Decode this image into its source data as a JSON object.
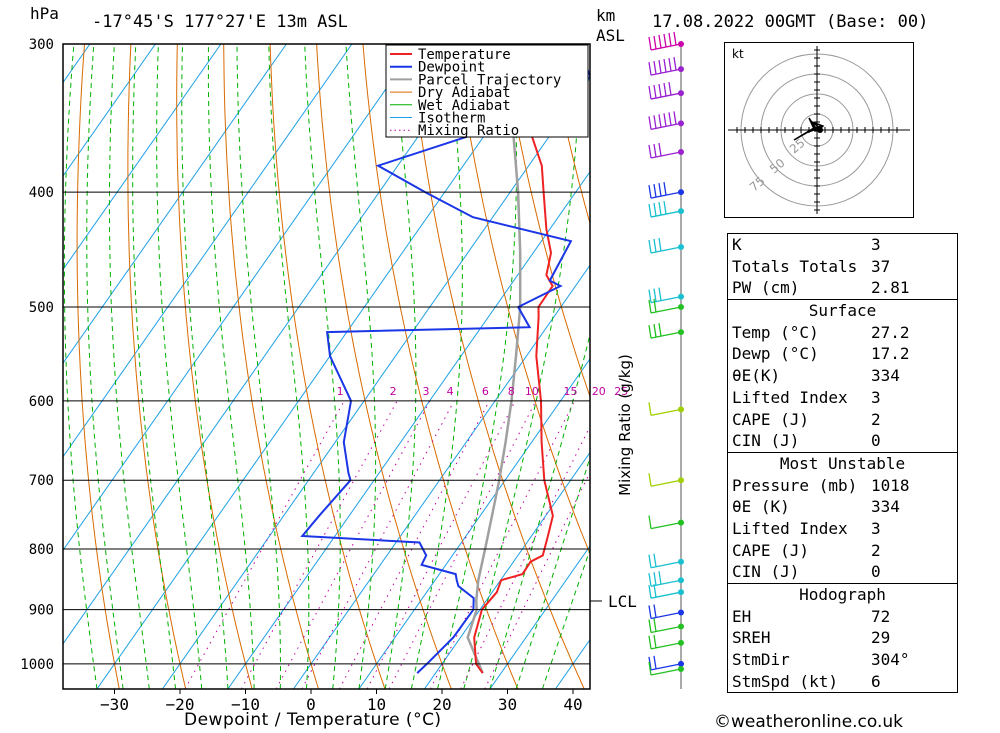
{
  "header": {
    "pressure_unit": "hPa",
    "location": "-17°45'S  177°27'E  13m  ASL",
    "height_unit_line1": "km",
    "height_unit_line2": "ASL",
    "datetime": "17.08.2022  00GMT  (Base: 00)"
  },
  "footer": {
    "x_axis_label": "Dewpoint / Temperature (°C)",
    "copyright": "©weatheronline.co.uk"
  },
  "colors": {
    "temperature": "#ee2222",
    "dewpoint": "#1a36e6",
    "parcel": "#a0a0a0",
    "dry_adiabat": "#d96a00",
    "wet_adiabat": "#00b000",
    "isotherm": "#1ea0e6",
    "mixing_ratio": "#c000a0",
    "wind_pink": "#cc00aa",
    "wind_purple": "#9a20d0",
    "wind_blue": "#1a36e6",
    "wind_cyan": "#18c0d0",
    "wind_green": "#22c020",
    "wind_yellowgreen": "#a0d000"
  },
  "chart_data": {
    "type": "skew-t",
    "title": "-17°45'S  177°27'E  13m  ASL",
    "xlabel": "Dewpoint / Temperature (°C)",
    "ylabel": "hPa",
    "right_label": "Mixing Ratio (g/kg)",
    "x_ticks": [
      -30,
      -20,
      -10,
      0,
      10,
      20,
      30,
      40
    ],
    "pressure_levels": [
      300,
      400,
      500,
      600,
      700,
      800,
      900,
      1000
    ],
    "pressure_labels": [
      "300",
      "400",
      "500",
      "600",
      "700",
      "800",
      "900",
      "1000"
    ],
    "lcl_label": "LCL",
    "lcl_pressure": 885,
    "mixing_ratio_labels": [
      "1",
      "2",
      "3",
      "4",
      "6",
      "8",
      "10",
      "15",
      "20",
      "25"
    ],
    "legend": [
      "Temperature",
      "Dewpoint",
      "Parcel Trajectory",
      "Dry Adiabat",
      "Wet Adiabat",
      "Isotherm",
      "Mixing Ratio"
    ],
    "series": [
      {
        "name": "Temperature",
        "points": [
          [
            1018,
            27.2
          ],
          [
            1000,
            25.2
          ],
          [
            950,
            22.1
          ],
          [
            900,
            20.3
          ],
          [
            870,
            20.7
          ],
          [
            850,
            20.1
          ],
          [
            840,
            22.7
          ],
          [
            820,
            22.6
          ],
          [
            810,
            23.8
          ],
          [
            780,
            22.5
          ],
          [
            750,
            21.1
          ],
          [
            700,
            16.0
          ],
          [
            650,
            11.5
          ],
          [
            600,
            7.0
          ],
          [
            550,
            1.5
          ],
          [
            510,
            -2.3
          ],
          [
            500,
            -3.4
          ],
          [
            480,
            -3.5
          ],
          [
            470,
            -5.6
          ],
          [
            450,
            -7.3
          ],
          [
            430,
            -10.5
          ],
          [
            400,
            -14.9
          ],
          [
            380,
            -18.0
          ],
          [
            350,
            -24.7
          ],
          [
            320,
            -31.2
          ],
          [
            300,
            -34.7
          ]
        ]
      },
      {
        "name": "Dewpoint",
        "points": [
          [
            1018,
            17.2
          ],
          [
            1000,
            17.7
          ],
          [
            950,
            18.9
          ],
          [
            900,
            19.0
          ],
          [
            880,
            17.8
          ],
          [
            860,
            14.2
          ],
          [
            850,
            13.3
          ],
          [
            840,
            12.5
          ],
          [
            825,
            6.3
          ],
          [
            810,
            6.0
          ],
          [
            790,
            3.6
          ],
          [
            780,
            -15.0
          ],
          [
            750,
            -14.6
          ],
          [
            700,
            -13.6
          ],
          [
            690,
            -14.7
          ],
          [
            650,
            -18.7
          ],
          [
            600,
            -22.0
          ],
          [
            550,
            -30.0
          ],
          [
            525,
            -33.0
          ],
          [
            520,
            -2.6
          ],
          [
            500,
            -6.5
          ],
          [
            480,
            -2.3
          ],
          [
            475,
            -4.5
          ],
          [
            440,
            -5.5
          ],
          [
            420,
            -23.0
          ],
          [
            400,
            -33.0
          ],
          [
            380,
            -43.0
          ],
          [
            360,
            -33.0
          ],
          [
            340,
            -21.0
          ],
          [
            330,
            -30.0
          ],
          [
            320,
            -20.0
          ],
          [
            300,
            -25.7
          ]
        ]
      },
      {
        "name": "Parcel Trajectory",
        "points": [
          [
            1018,
            27.2
          ],
          [
            950,
            21.1
          ],
          [
            900,
            19.5
          ],
          [
            885,
            18.5
          ],
          [
            850,
            16.6
          ],
          [
            800,
            14.3
          ],
          [
            750,
            11.8
          ],
          [
            700,
            9.1
          ],
          [
            650,
            6.0
          ],
          [
            600,
            2.5
          ],
          [
            550,
            -1.6
          ],
          [
            500,
            -6.2
          ],
          [
            450,
            -12.0
          ],
          [
            400,
            -18.8
          ],
          [
            350,
            -27.0
          ],
          [
            300,
            -36.8
          ]
        ]
      }
    ],
    "wind_profile": [
      {
        "pressure": 300,
        "speed_kt": 60,
        "color": "wind_pink"
      },
      {
        "pressure": 315,
        "speed_kt": 55,
        "color": "wind_purple"
      },
      {
        "pressure": 330,
        "speed_kt": 45,
        "color": "wind_purple"
      },
      {
        "pressure": 350,
        "speed_kt": 55,
        "color": "wind_purple"
      },
      {
        "pressure": 370,
        "speed_kt": 30,
        "color": "wind_purple"
      },
      {
        "pressure": 400,
        "speed_kt": 40,
        "color": "wind_blue"
      },
      {
        "pressure": 415,
        "speed_kt": 35,
        "color": "wind_cyan"
      },
      {
        "pressure": 445,
        "speed_kt": 25,
        "color": "wind_cyan"
      },
      {
        "pressure": 490,
        "speed_kt": 25,
        "color": "wind_cyan"
      },
      {
        "pressure": 500,
        "speed_kt": 20,
        "color": "wind_green"
      },
      {
        "pressure": 525,
        "speed_kt": 25,
        "color": "wind_green"
      },
      {
        "pressure": 610,
        "speed_kt": 10,
        "color": "wind_yellowgreen"
      },
      {
        "pressure": 700,
        "speed_kt": 10,
        "color": "wind_yellowgreen"
      },
      {
        "pressure": 760,
        "speed_kt": 10,
        "color": "wind_green"
      },
      {
        "pressure": 820,
        "speed_kt": 20,
        "color": "wind_cyan"
      },
      {
        "pressure": 850,
        "speed_kt": 25,
        "color": "wind_cyan"
      },
      {
        "pressure": 870,
        "speed_kt": 20,
        "color": "wind_cyan"
      },
      {
        "pressure": 905,
        "speed_kt": 20,
        "color": "wind_blue"
      },
      {
        "pressure": 930,
        "speed_kt": 15,
        "color": "wind_green"
      },
      {
        "pressure": 960,
        "speed_kt": 15,
        "color": "wind_green"
      },
      {
        "pressure": 1000,
        "speed_kt": 15,
        "color": "wind_blue"
      },
      {
        "pressure": 1010,
        "speed_kt": 10,
        "color": "wind_green"
      }
    ],
    "hodograph": {
      "unit_label": "kt",
      "ring_labels": [
        "25",
        "50",
        "75"
      ]
    }
  },
  "indices": {
    "general": [
      {
        "label": "K",
        "value": "3"
      },
      {
        "label": "Totals Totals",
        "value": "37"
      },
      {
        "label": "PW (cm)",
        "value": "2.81"
      }
    ],
    "surface": {
      "title": "Surface",
      "rows": [
        {
          "label": "Temp (°C)",
          "value": "27.2"
        },
        {
          "label": "Dewp (°C)",
          "value": "17.2"
        },
        {
          "label": "θE(K)",
          "value": "334"
        },
        {
          "label": "Lifted Index",
          "value": "3"
        },
        {
          "label": "CAPE (J)",
          "value": "2"
        },
        {
          "label": "CIN (J)",
          "value": "0"
        }
      ]
    },
    "most_unstable": {
      "title": "Most Unstable",
      "rows": [
        {
          "label": "Pressure (mb)",
          "value": "1018"
        },
        {
          "label": "θE (K)",
          "value": "334"
        },
        {
          "label": "Lifted Index",
          "value": "3"
        },
        {
          "label": "CAPE (J)",
          "value": "2"
        },
        {
          "label": "CIN (J)",
          "value": "0"
        }
      ]
    },
    "hodograph": {
      "title": "Hodograph",
      "rows": [
        {
          "label": "EH",
          "value": "72"
        },
        {
          "label": "SREH",
          "value": "29"
        },
        {
          "label": "StmDir",
          "value": "304°"
        },
        {
          "label": "StmSpd (kt)",
          "value": "6"
        }
      ]
    }
  }
}
